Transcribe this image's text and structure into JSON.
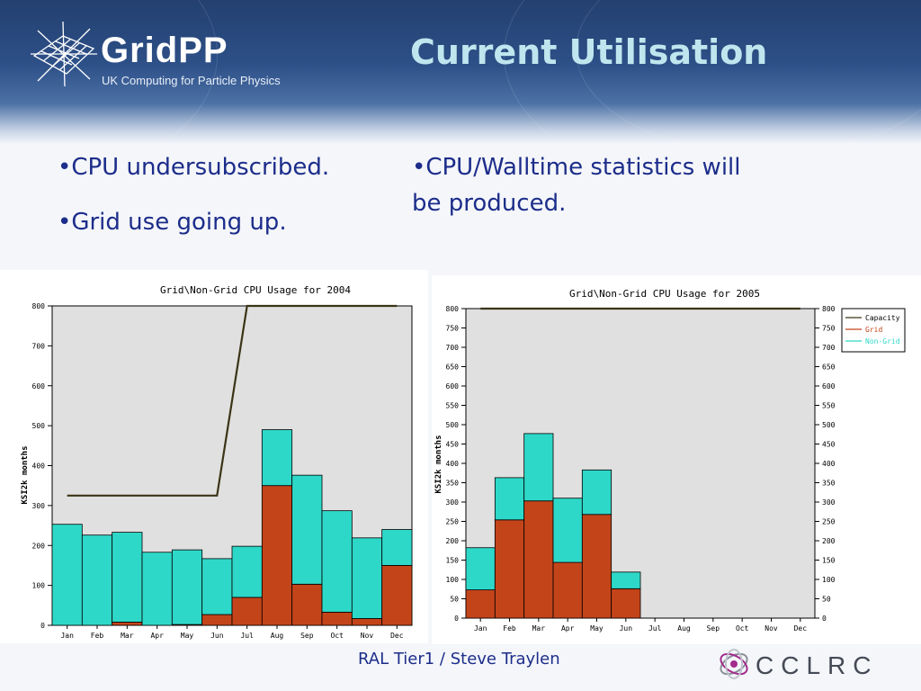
{
  "header": {
    "logo_name": "GridPP",
    "logo_tagline": "UK Computing for Particle Physics",
    "title": "Current Utilisation"
  },
  "bullets_left": [
    "•CPU undersubscribed.",
    "•Grid use going up."
  ],
  "bullets_right": [
    "•CPU/Walltime statistics will",
    "be produced."
  ],
  "footer": {
    "text": "RAL Tier1 / Steve Traylen",
    "org_logo": "CCLRC"
  },
  "colors": {
    "grid": "#c4441a",
    "non_grid": "#2ed8c8",
    "capacity": "#3a3416",
    "plot_bg": "#e0e0e0"
  },
  "chart_data": [
    {
      "type": "bar",
      "stacked": true,
      "title": "Grid\\Non-Grid CPU Usage for 2004",
      "xlabel": "",
      "ylabel": "KSI2k months",
      "ylim": [
        0,
        800
      ],
      "yticks": [
        0,
        100,
        200,
        300,
        400,
        500,
        600,
        700,
        800
      ],
      "categories": [
        "Jan",
        "Feb",
        "Mar",
        "Apr",
        "May",
        "Jun",
        "Jul",
        "Aug",
        "Sep",
        "Oct",
        "Nov",
        "Dec"
      ],
      "series": [
        {
          "name": "Grid",
          "values": [
            0,
            0,
            8,
            0,
            2,
            27,
            70,
            350,
            103,
            33,
            17,
            150
          ]
        },
        {
          "name": "Non-Grid",
          "values": [
            253,
            226,
            225,
            183,
            187,
            140,
            128,
            140,
            273,
            254,
            202,
            90
          ]
        },
        {
          "name": "Capacity",
          "type": "line",
          "values": [
            325,
            325,
            325,
            325,
            325,
            325,
            800,
            800,
            800,
            800,
            800,
            800
          ]
        }
      ],
      "legend": "none",
      "grid": false
    },
    {
      "type": "bar",
      "stacked": true,
      "title": "Grid\\Non-Grid CPU Usage for 2005",
      "xlabel": "",
      "ylabel": "KSI2k months",
      "ylim": [
        0,
        800
      ],
      "yticks": [
        0,
        50,
        100,
        150,
        200,
        250,
        300,
        350,
        400,
        450,
        500,
        550,
        600,
        650,
        700,
        750,
        800
      ],
      "categories": [
        "Jan",
        "Feb",
        "Mar",
        "Apr",
        "May",
        "Jun",
        "Jul",
        "Aug",
        "Sep",
        "Oct",
        "Nov",
        "Dec"
      ],
      "series": [
        {
          "name": "Capacity",
          "type": "line",
          "values": [
            800,
            800,
            800,
            800,
            800,
            800,
            800,
            800,
            800,
            800,
            800,
            800
          ]
        },
        {
          "name": "Grid",
          "values": [
            73,
            254,
            303,
            144,
            268,
            76,
            0,
            0,
            0,
            0,
            0,
            0
          ]
        },
        {
          "name": "Non-Grid",
          "values": [
            109,
            109,
            174,
            166,
            115,
            43,
            0,
            0,
            0,
            0,
            0,
            0
          ]
        }
      ],
      "legend": "right",
      "grid": false
    }
  ]
}
